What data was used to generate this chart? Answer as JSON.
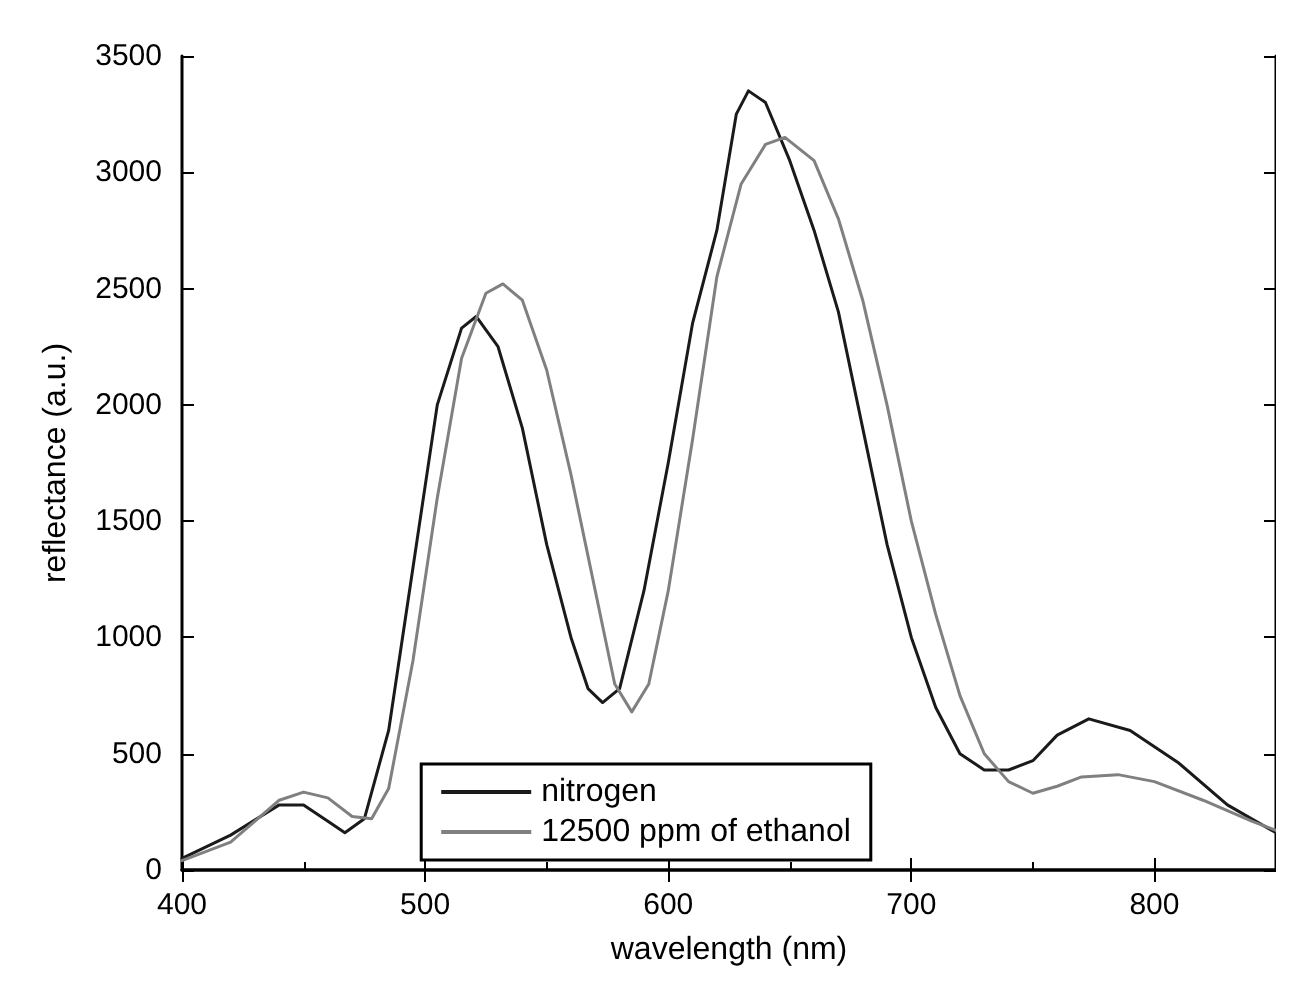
{
  "chart_data": {
    "type": "line",
    "xlabel": "wavelength (nm)",
    "ylabel": "reflectance (a.u.)",
    "xlim": [
      400,
      850
    ],
    "xticks": [
      400,
      500,
      600,
      700,
      800
    ],
    "ylim": [
      0,
      3500
    ],
    "yticks": [
      0,
      500,
      1000,
      1500,
      2000,
      2500,
      3000,
      3500
    ],
    "grid": false,
    "legend": "bottom",
    "marker": "none",
    "line_style": "solid",
    "series": [
      {
        "name": "nitrogen",
        "color": "#1a1a1a",
        "x": [
          400,
          420,
          440,
          450,
          460,
          467,
          475,
          485,
          495,
          505,
          515,
          521,
          530,
          540,
          550,
          560,
          567,
          573,
          580,
          590,
          600,
          610,
          620,
          628,
          633,
          640,
          650,
          660,
          670,
          680,
          690,
          700,
          710,
          720,
          730,
          740,
          750,
          760,
          773,
          790,
          810,
          830,
          850
        ],
        "values": [
          50,
          150,
          280,
          280,
          210,
          160,
          220,
          600,
          1300,
          2000,
          2330,
          2380,
          2250,
          1900,
          1400,
          1000,
          780,
          720,
          780,
          1200,
          1750,
          2350,
          2750,
          3250,
          3350,
          3300,
          3050,
          2750,
          2400,
          1900,
          1400,
          1000,
          700,
          500,
          430,
          430,
          470,
          580,
          650,
          600,
          460,
          280,
          160
        ]
      },
      {
        "name": "12500 ppm of ethanol",
        "color": "#808080",
        "x": [
          400,
          420,
          440,
          450,
          460,
          470,
          478,
          485,
          495,
          505,
          515,
          525,
          532,
          540,
          550,
          560,
          570,
          578,
          585,
          592,
          600,
          610,
          620,
          630,
          640,
          648,
          660,
          670,
          680,
          690,
          700,
          710,
          720,
          730,
          740,
          750,
          760,
          770,
          785,
          800,
          820,
          840,
          850
        ],
        "values": [
          40,
          120,
          300,
          335,
          310,
          230,
          220,
          350,
          900,
          1600,
          2200,
          2480,
          2520,
          2450,
          2150,
          1700,
          1200,
          800,
          680,
          800,
          1200,
          1850,
          2550,
          2950,
          3120,
          3150,
          3050,
          2800,
          2450,
          2000,
          1500,
          1100,
          750,
          500,
          380,
          330,
          360,
          400,
          410,
          380,
          300,
          210,
          170
        ]
      }
    ]
  }
}
